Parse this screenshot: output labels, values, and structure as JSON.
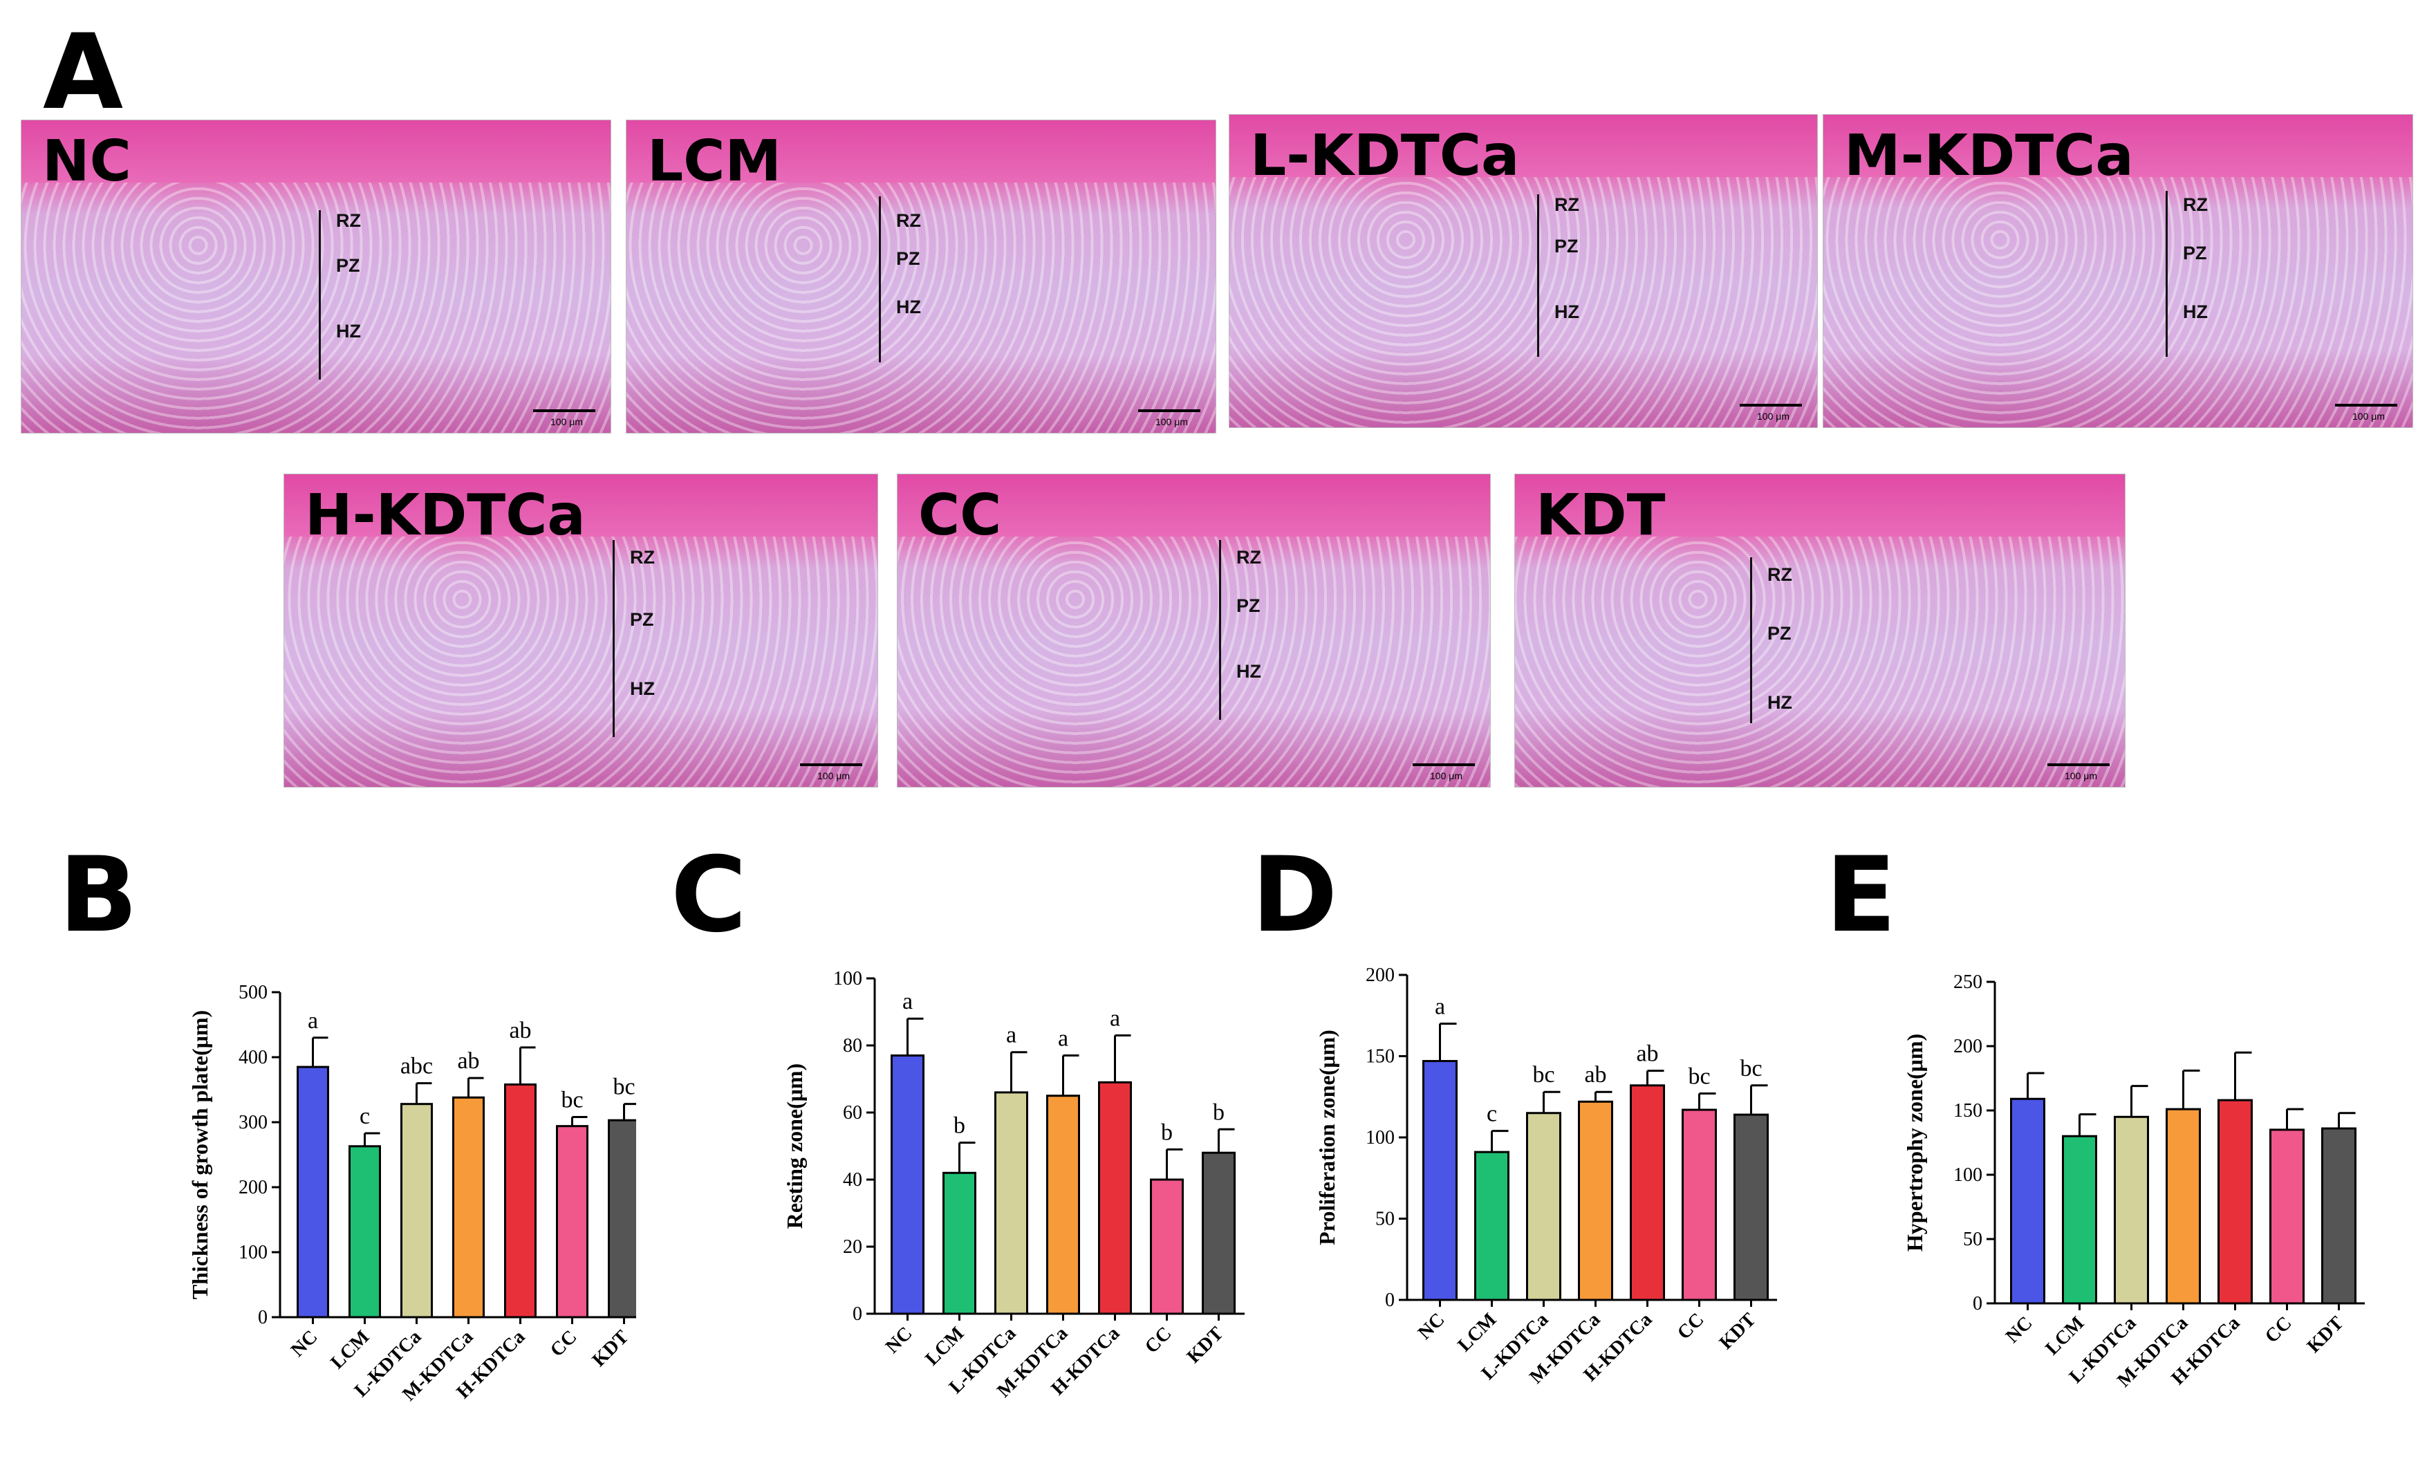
{
  "panels": {
    "A": "A",
    "B": "B",
    "C": "C",
    "D": "D",
    "E": "E"
  },
  "micrographs": [
    {
      "label": "NC",
      "zones": [
        "RZ",
        "PZ",
        "HZ"
      ],
      "scale": "100 μm"
    },
    {
      "label": "LCM",
      "zones": [
        "RZ",
        "PZ",
        "HZ"
      ],
      "scale": "100 μm"
    },
    {
      "label": "L-KDTCa",
      "zones": [
        "RZ",
        "PZ",
        "HZ"
      ],
      "scale": "100 μm"
    },
    {
      "label": "M-KDTCa",
      "zones": [
        "RZ",
        "PZ",
        "HZ"
      ],
      "scale": "100 μm"
    },
    {
      "label": "H-KDTCa",
      "zones": [
        "RZ",
        "PZ",
        "HZ"
      ],
      "scale": "100 μm"
    },
    {
      "label": "CC",
      "zones": [
        "RZ",
        "PZ",
        "HZ"
      ],
      "scale": "100 μm"
    },
    {
      "label": "KDT",
      "zones": [
        "RZ",
        "PZ",
        "HZ"
      ],
      "scale": "100 μm"
    }
  ],
  "colors": [
    "#4b55e6",
    "#1fbf73",
    "#d3d29a",
    "#f79a3a",
    "#e8303a",
    "#f0578b",
    "#555555"
  ],
  "chart_data": [
    {
      "panel": "B",
      "type": "bar",
      "categories": [
        "NC",
        "LCM",
        "L-KDTCa",
        "M-KDTCa",
        "H-KDTCa",
        "CC",
        "KDT"
      ],
      "values": [
        385,
        263,
        328,
        338,
        358,
        294,
        303
      ],
      "errors": [
        45,
        20,
        32,
        30,
        57,
        14,
        25
      ],
      "letters": [
        "a",
        "c",
        "abc",
        "ab",
        "ab",
        "bc",
        "bc"
      ],
      "ylabel": "Thickness of growth plate(μm)",
      "ylim": [
        0,
        500
      ],
      "yticks": [
        0,
        100,
        200,
        300,
        400,
        500
      ]
    },
    {
      "panel": "C",
      "type": "bar",
      "categories": [
        "NC",
        "LCM",
        "L-KDTCa",
        "M-KDTCa",
        "H-KDTCa",
        "CC",
        "KDT"
      ],
      "values": [
        77,
        42,
        66,
        65,
        69,
        40,
        48
      ],
      "errors": [
        11,
        9,
        12,
        12,
        14,
        9,
        7
      ],
      "letters": [
        "a",
        "b",
        "a",
        "a",
        "a",
        "b",
        "b"
      ],
      "ylabel": "Resting zone(μm)",
      "ylim": [
        0,
        100
      ],
      "yticks": [
        0,
        20,
        40,
        60,
        80,
        100
      ]
    },
    {
      "panel": "D",
      "type": "bar",
      "categories": [
        "NC",
        "LCM",
        "L-KDTCa",
        "M-KDTCa",
        "H-KDTCa",
        "CC",
        "KDT"
      ],
      "values": [
        147,
        91,
        115,
        122,
        132,
        117,
        114
      ],
      "errors": [
        23,
        13,
        13,
        6,
        9,
        10,
        18
      ],
      "letters": [
        "a",
        "c",
        "bc",
        "ab",
        "ab",
        "bc",
        "bc"
      ],
      "ylabel": "Proliferation zone(μm)",
      "ylim": [
        0,
        200
      ],
      "yticks": [
        0,
        50,
        100,
        150,
        200
      ]
    },
    {
      "panel": "E",
      "type": "bar",
      "categories": [
        "NC",
        "LCM",
        "L-KDTCa",
        "M-KDTCa",
        "H-KDTCa",
        "CC",
        "KDT"
      ],
      "values": [
        159,
        130,
        145,
        151,
        158,
        135,
        136
      ],
      "errors": [
        20,
        17,
        24,
        30,
        37,
        16,
        12
      ],
      "letters": [
        "",
        "",
        "",
        "",
        "",
        "",
        ""
      ],
      "ylabel": "Hypertrophy zone(μm)",
      "ylim": [
        0,
        250
      ],
      "yticks": [
        0,
        50,
        100,
        150,
        200,
        250
      ]
    }
  ]
}
